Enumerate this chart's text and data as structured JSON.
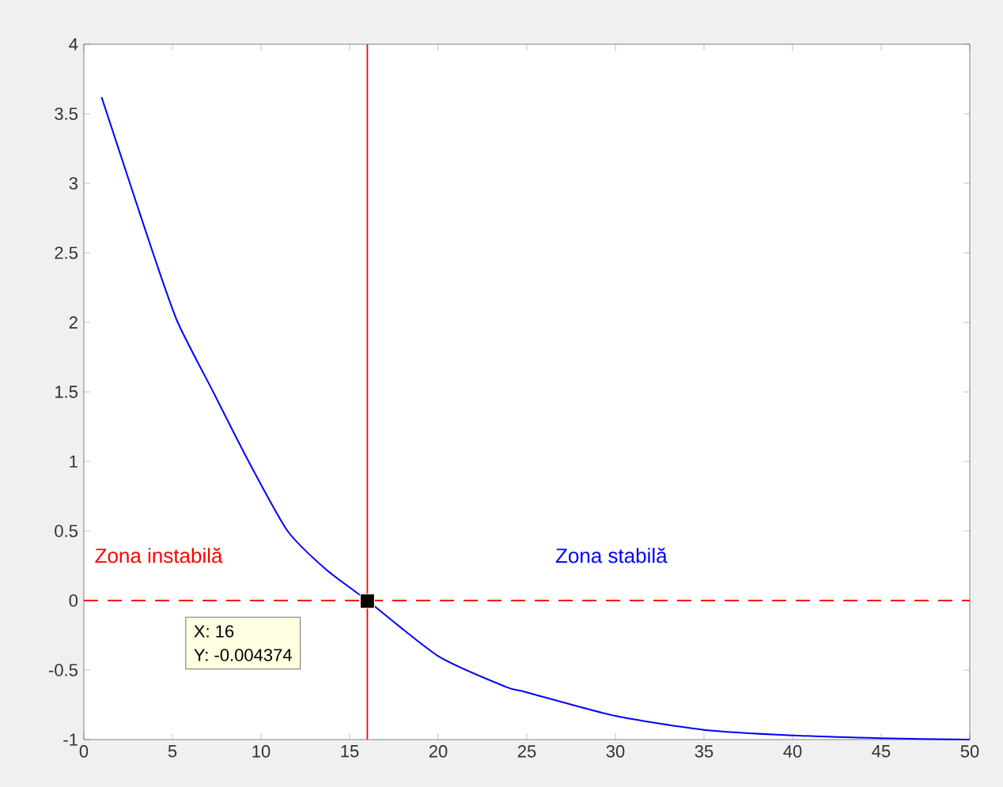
{
  "chart_data": {
    "type": "line",
    "x": [
      1,
      2.6,
      3.9,
      5.3,
      7.3,
      9.3,
      11.5,
      13.7,
      16,
      20,
      23.8,
      25,
      30,
      35,
      40,
      45,
      50
    ],
    "series": [
      {
        "color": "#0000ff",
        "values": [
          3.62,
          3,
          2.5,
          2,
          1.5,
          1,
          0.5,
          0.22,
          0,
          -0.4,
          -0.62,
          -0.66,
          -0.83,
          -0.93,
          -0.97,
          -0.99,
          -1
        ]
      },
      {
        "type": "scatter",
        "marker": "square",
        "color": "#000000",
        "x": [
          16
        ],
        "values": [
          -0.004374
        ]
      }
    ],
    "xlim": [
      0,
      50
    ],
    "xticks": [
      0,
      5,
      10,
      15,
      20,
      25,
      30,
      35,
      40,
      45,
      50
    ],
    "ylim": [
      -1,
      4
    ],
    "yticks": [
      -1,
      -0.5,
      0,
      0.5,
      1,
      1.5,
      2,
      2.5,
      3,
      3.5,
      4
    ],
    "ref_lines": [
      {
        "axis": "x",
        "value": 16,
        "color": "#ff0000",
        "line_style": "solid"
      },
      {
        "axis": "y",
        "value": 0,
        "color": "#ff0000",
        "line_style": "dashed"
      }
    ],
    "annotations": [
      "Zona instabilă",
      "Zona stabilă",
      "X: 16",
      "Y: -0.004374"
    ],
    "grid": false
  }
}
